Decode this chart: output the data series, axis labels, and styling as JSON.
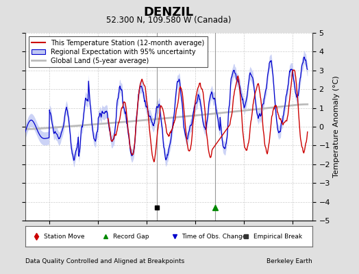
{
  "title": "DENZIL",
  "subtitle": "52.300 N, 109.580 W (Canada)",
  "ylabel": "Temperature Anomaly (°C)",
  "xlabel_note": "Data Quality Controlled and Aligned at Breakpoints",
  "credit": "Berkeley Earth",
  "xlim": [
    1945,
    2004
  ],
  "ylim": [
    -5,
    5
  ],
  "yticks": [
    -5,
    -4,
    -3,
    -2,
    -1,
    0,
    1,
    2,
    3,
    4,
    5
  ],
  "xticks": [
    1950,
    1960,
    1970,
    1980,
    1990,
    2000
  ],
  "bg_color": "#e8e8e8",
  "plot_bg_color": "#ffffff",
  "red_color": "#cc0000",
  "blue_color": "#0000bb",
  "blue_fill_color": "#c0c8f0",
  "gray_color": "#bbbbbb",
  "empirical_break_x": 1972.0,
  "record_gap_x": 1984.0,
  "red_gap_start": 1983.5,
  "red_gap_end": 1987.0,
  "legend_entries": [
    "This Temperature Station (12-month average)",
    "Regional Expectation with 95% uncertainty",
    "Global Land (5-year average)"
  ]
}
